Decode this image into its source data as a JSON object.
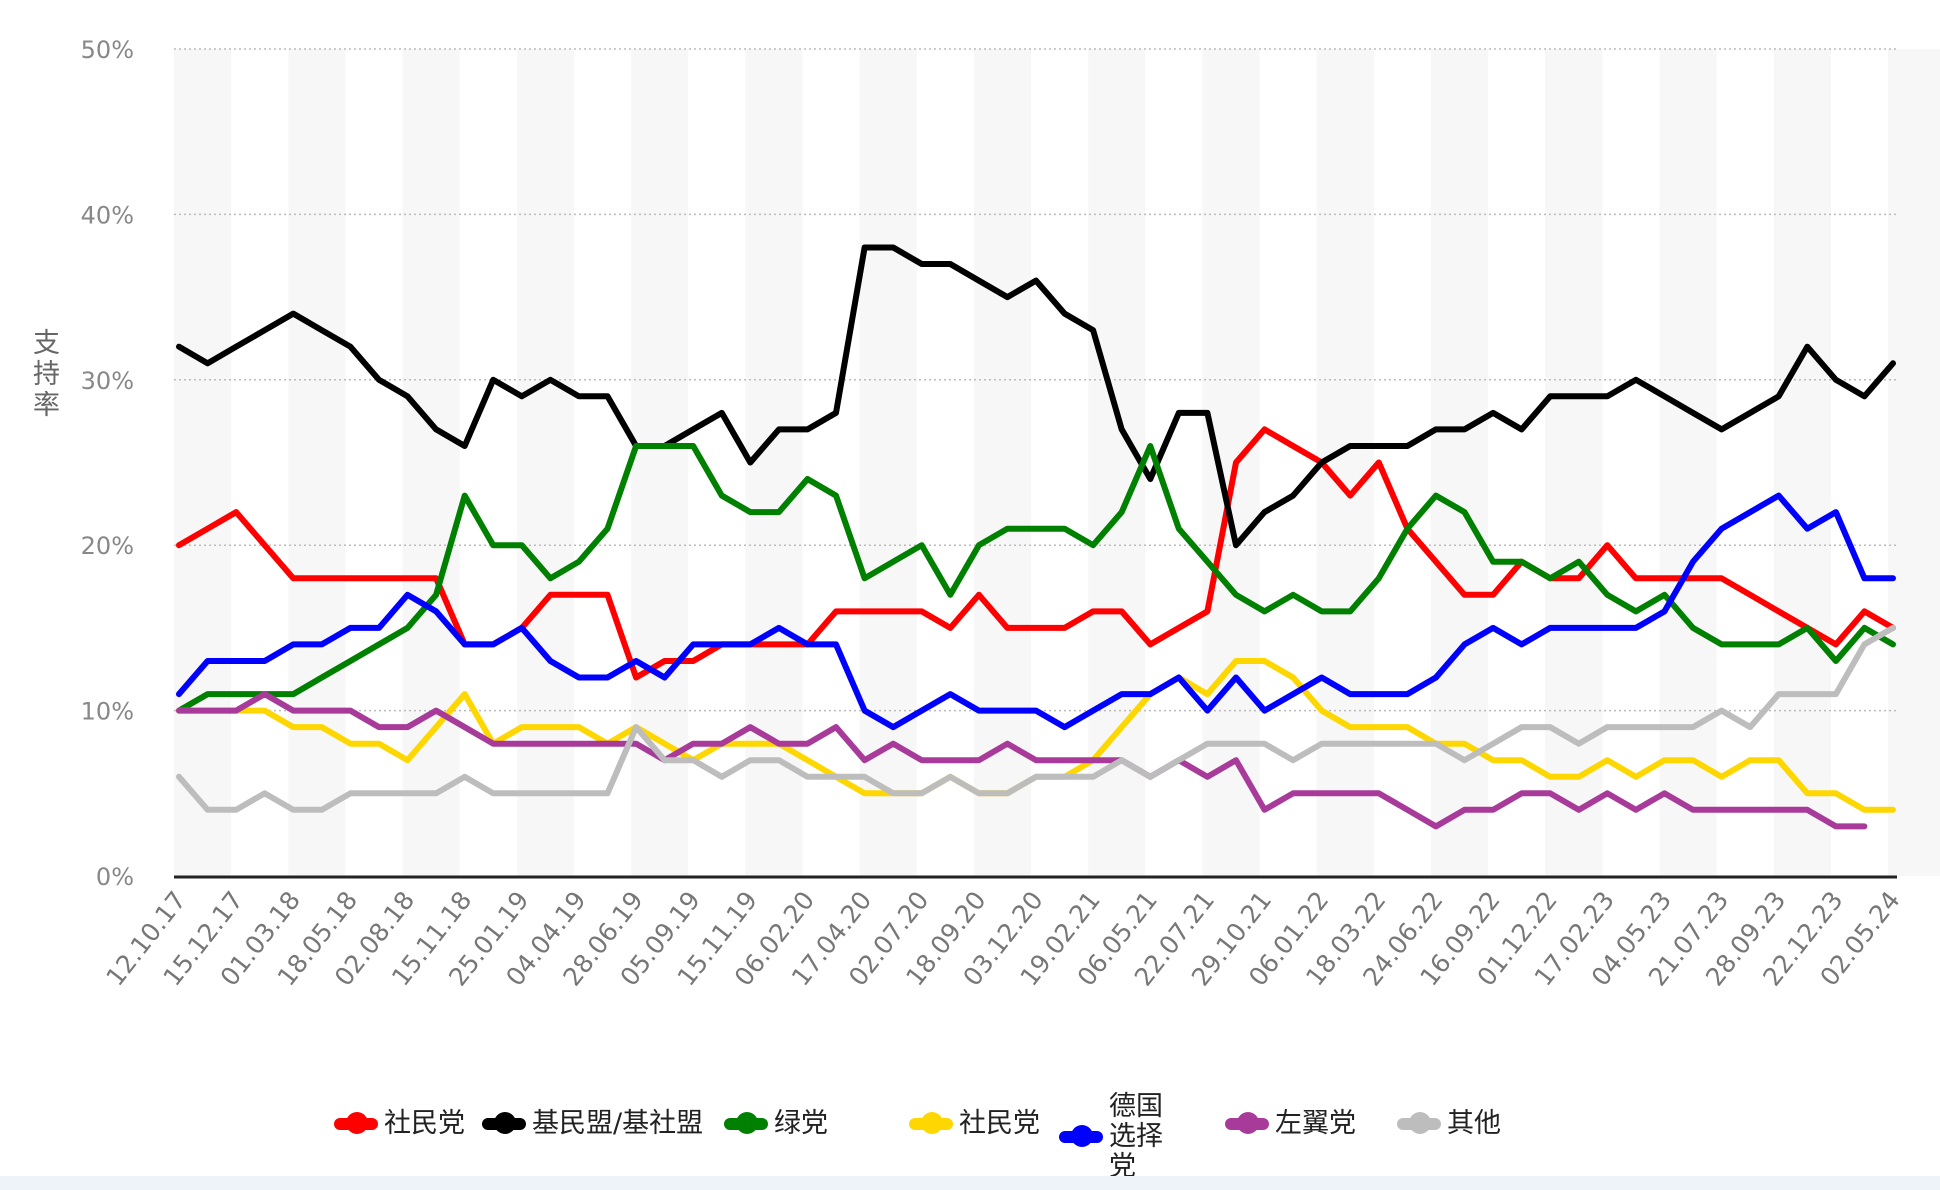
{
  "chart_data": {
    "type": "line",
    "title": "",
    "xlabel": "",
    "ylabel": "支持率",
    "ylim": [
      0,
      50
    ],
    "yticks": [
      "0%",
      "10%",
      "20%",
      "30%",
      "40%",
      "50%"
    ],
    "ytick_values": [
      0,
      10,
      20,
      30,
      40,
      50
    ],
    "grid": true,
    "legend_position": "bottom",
    "xtick_labels": [
      "12.10.17",
      "15.12.17",
      "01.03.18",
      "18.05.18",
      "02.08.18",
      "15.11.18",
      "25.01.19",
      "04.04.19",
      "28.06.19",
      "05.09.19",
      "15.11.19",
      "06.02.20",
      "17.04.20",
      "02.07.20",
      "18.09.20",
      "03.12.20",
      "19.02.21",
      "06.05.21",
      "22.07.21",
      "29.10.21",
      "06.01.22",
      "18.03.22",
      "24.06.22",
      "16.09.22",
      "01.12.22",
      "17.02.23",
      "04.05.23",
      "21.07.23",
      "28.09.23",
      "22.12.23",
      "02.05.24"
    ],
    "series": [
      {
        "name": "社民党",
        "color": "#ff0000",
        "values": [
          20,
          21,
          22,
          20,
          18,
          18,
          18,
          18,
          18,
          18,
          14,
          14,
          15,
          17,
          17,
          17,
          12,
          13,
          13,
          14,
          14,
          14,
          14,
          16,
          16,
          16,
          16,
          15,
          17,
          15,
          15,
          15,
          16,
          16,
          14,
          15,
          16,
          25,
          27,
          26,
          25,
          23,
          25,
          21,
          19,
          17,
          17,
          19,
          18,
          18,
          20,
          18,
          18,
          18,
          18,
          17,
          16,
          15,
          14,
          16,
          15
        ]
      },
      {
        "name": "基民盟/基社盟",
        "color": "#000000",
        "values": [
          32,
          31,
          32,
          33,
          34,
          33,
          32,
          30,
          29,
          27,
          26,
          30,
          29,
          30,
          29,
          29,
          26,
          26,
          27,
          28,
          25,
          27,
          27,
          28,
          38,
          38,
          37,
          37,
          36,
          35,
          36,
          34,
          33,
          27,
          24,
          28,
          28,
          20,
          22,
          23,
          25,
          26,
          26,
          26,
          27,
          27,
          28,
          27,
          29,
          29,
          29,
          30,
          29,
          28,
          27,
          28,
          29,
          32,
          30,
          29,
          31
        ]
      },
      {
        "name": "绿党",
        "color": "#008000",
        "values": [
          10,
          11,
          11,
          11,
          11,
          12,
          13,
          14,
          15,
          17,
          23,
          20,
          20,
          18,
          19,
          21,
          26,
          26,
          26,
          23,
          22,
          22,
          24,
          23,
          18,
          19,
          20,
          17,
          20,
          21,
          21,
          21,
          20,
          22,
          26,
          21,
          19,
          17,
          16,
          17,
          16,
          16,
          18,
          21,
          23,
          22,
          19,
          19,
          18,
          19,
          17,
          16,
          17,
          15,
          14,
          14,
          14,
          15,
          13,
          15,
          14
        ]
      },
      {
        "name": "社民党",
        "color": "#ffd700",
        "values": [
          10,
          10,
          10,
          10,
          9,
          9,
          8,
          8,
          7,
          9,
          11,
          8,
          9,
          9,
          9,
          8,
          9,
          8,
          7,
          8,
          8,
          8,
          7,
          6,
          5,
          5,
          5,
          6,
          5,
          5,
          6,
          6,
          7,
          9,
          11,
          12,
          11,
          13,
          13,
          12,
          10,
          9,
          9,
          9,
          8,
          8,
          7,
          7,
          6,
          6,
          7,
          6,
          7,
          7,
          6,
          7,
          7,
          5,
          5,
          4,
          4
        ]
      },
      {
        "name": "德国选择党",
        "color": "#0000ff",
        "values": [
          11,
          13,
          13,
          13,
          14,
          14,
          15,
          15,
          17,
          16,
          14,
          14,
          15,
          13,
          12,
          12,
          13,
          12,
          14,
          14,
          14,
          15,
          14,
          14,
          10,
          9,
          10,
          11,
          10,
          10,
          10,
          9,
          10,
          11,
          11,
          12,
          10,
          12,
          10,
          11,
          12,
          11,
          11,
          11,
          12,
          14,
          15,
          14,
          15,
          15,
          15,
          15,
          16,
          19,
          21,
          22,
          23,
          21,
          22,
          18,
          18
        ]
      },
      {
        "name": "左翼党",
        "color": "#a83b9a",
        "values": [
          10,
          10,
          10,
          11,
          10,
          10,
          10,
          9,
          9,
          10,
          9,
          8,
          8,
          8,
          8,
          8,
          8,
          7,
          8,
          8,
          9,
          8,
          8,
          9,
          7,
          8,
          7,
          7,
          7,
          8,
          7,
          7,
          7,
          7,
          6,
          7,
          6,
          7,
          4,
          5,
          5,
          5,
          5,
          4,
          3,
          4,
          4,
          5,
          5,
          4,
          5,
          4,
          5,
          4,
          4,
          4,
          4,
          4,
          3,
          3,
          null
        ]
      },
      {
        "name": "其他",
        "color": "#bdbdbd",
        "values": [
          6,
          4,
          4,
          5,
          4,
          4,
          5,
          5,
          5,
          5,
          6,
          5,
          5,
          5,
          5,
          5,
          9,
          7,
          7,
          6,
          7,
          7,
          6,
          6,
          6,
          5,
          5,
          6,
          5,
          5,
          6,
          6,
          6,
          7,
          6,
          7,
          8,
          8,
          8,
          7,
          8,
          8,
          8,
          8,
          8,
          7,
          8,
          9,
          9,
          8,
          9,
          9,
          9,
          9,
          10,
          9,
          11,
          11,
          11,
          14,
          15
        ]
      }
    ],
    "legend": {
      "items": [
        {
          "label": "社民党",
          "color": "#ff0000"
        },
        {
          "label": "基民盟/基社盟",
          "color": "#000000"
        },
        {
          "label": "绿党",
          "color": "#008000"
        },
        {
          "label": "社民党",
          "color": "#ffd700"
        },
        {
          "label": "德国\n选择党",
          "line1": "德国",
          "line2": "选择党",
          "color": "#0000ff"
        },
        {
          "label": "左翼党",
          "color": "#a83b9a"
        },
        {
          "label": "其他",
          "color": "#bdbdbd"
        }
      ]
    }
  }
}
